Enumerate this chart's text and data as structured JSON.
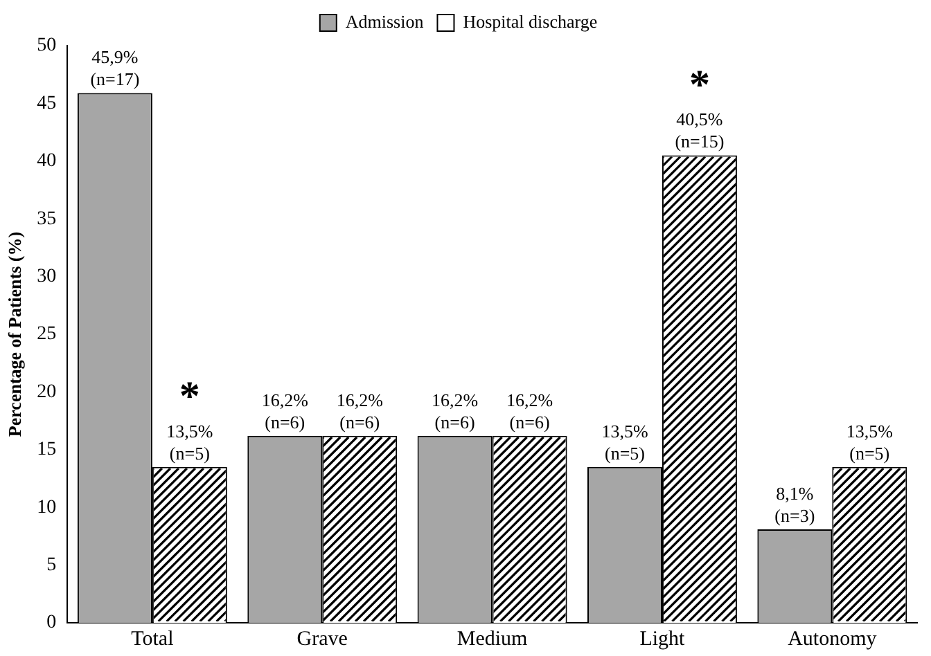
{
  "chart_data": {
    "type": "bar",
    "ylabel": "Percentage of Patients (%)",
    "categories": [
      "Total",
      "Grave",
      "Medium",
      "Light",
      "Autonomy"
    ],
    "series": [
      {
        "name": "Admission",
        "color": "#a6a6a6",
        "values": [
          45.9,
          16.2,
          16.2,
          13.5,
          8.1
        ],
        "value_labels": [
          "45,9%\n(n=17)",
          "16,2%\n(n=6)",
          "16,2%\n(n=6)",
          "13,5%\n(n=5)",
          "8,1%\n(n=3)"
        ]
      },
      {
        "name": "Hospital discharge",
        "color": "#000000",
        "values": [
          13.5,
          16.2,
          16.2,
          40.5,
          13.5
        ],
        "value_labels": [
          "13,5%\n(n=5)",
          "16,2%\n(n=6)",
          "16,2%\n(n=6)",
          "40,5%\n(n=15)",
          "13,5%\n(n=5)"
        ]
      }
    ],
    "annotations": [
      {
        "text": "*",
        "x": "Total",
        "y": 13.5
      },
      {
        "text": "*",
        "x": "Light",
        "y": 40.5
      }
    ],
    "ylim": [
      0,
      50
    ],
    "yticks": [
      0,
      5,
      10,
      15,
      20,
      25,
      30,
      35,
      40,
      45,
      50
    ],
    "grid": false,
    "legend": "top"
  }
}
